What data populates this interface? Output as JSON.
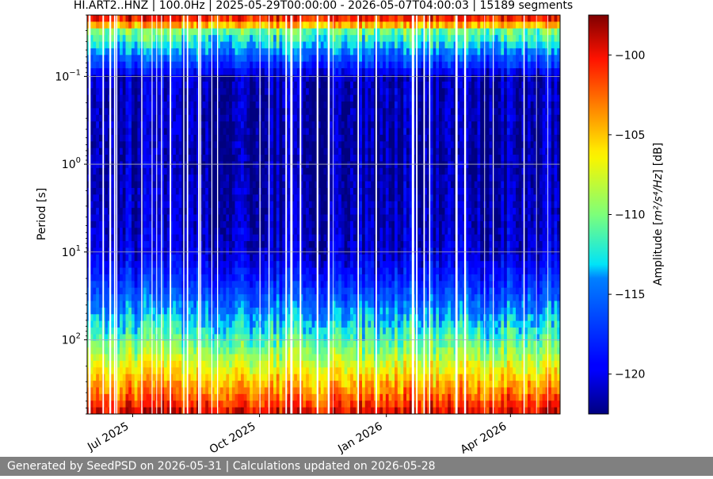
{
  "chart_data": {
    "type": "heatmap",
    "title": "HI.ART2..HNZ | 100.0Hz | 2025-05-29T00:00:00 - 2026-05-07T04:00:03 | 15189 segments",
    "xlabel": "",
    "ylabel": "Period [s]",
    "x_start": "2025-05-29",
    "x_end": "2026-05-07",
    "x_ticks": [
      {
        "date": "2025-07-01",
        "label": "Jul 2025"
      },
      {
        "date": "2025-10-01",
        "label": "Oct 2025"
      },
      {
        "date": "2026-01-01",
        "label": "Jan 2026"
      },
      {
        "date": "2026-04-01",
        "label": "Apr 2026"
      }
    ],
    "y_scale": "log",
    "y_inverted": true,
    "ylim": [
      0.02,
      700
    ],
    "y_ticks": [
      {
        "value": 0.1,
        "base": "10",
        "exp": "−1"
      },
      {
        "value": 1,
        "base": "10",
        "exp": "0"
      },
      {
        "value": 10,
        "base": "10",
        "exp": "1"
      },
      {
        "value": 100,
        "base": "10",
        "exp": "2"
      }
    ],
    "grid": true,
    "colormap": "jet",
    "colorbar": {
      "label_prefix": "Amplitude [",
      "label_math": "m²/s⁴/Hz",
      "label_suffix": "] [dB]",
      "range": [
        -122.5,
        -97.5
      ],
      "ticks": [
        -100,
        -105,
        -110,
        -115,
        -120
      ],
      "tick_labels": [
        "−100",
        "−105",
        "−110",
        "−115",
        "−120"
      ]
    },
    "amplitude_profile_db": [
      {
        "period": 0.02,
        "db": -99
      },
      {
        "period": 0.025,
        "db": -103
      },
      {
        "period": 0.03,
        "db": -110
      },
      {
        "period": 0.05,
        "db": -114
      },
      {
        "period": 0.08,
        "db": -118
      },
      {
        "period": 0.1,
        "db": -121
      },
      {
        "period": 1,
        "db": -121.5
      },
      {
        "period": 10,
        "db": -120.5
      },
      {
        "period": 20,
        "db": -118
      },
      {
        "period": 50,
        "db": -114
      },
      {
        "period": 100,
        "db": -111
      },
      {
        "period": 200,
        "db": -107
      },
      {
        "period": 400,
        "db": -103
      },
      {
        "period": 700,
        "db": -99
      }
    ]
  },
  "footer": {
    "text": "Generated by SeedPSD on 2026-05-31 | Calculations updated on 2026-05-28"
  }
}
